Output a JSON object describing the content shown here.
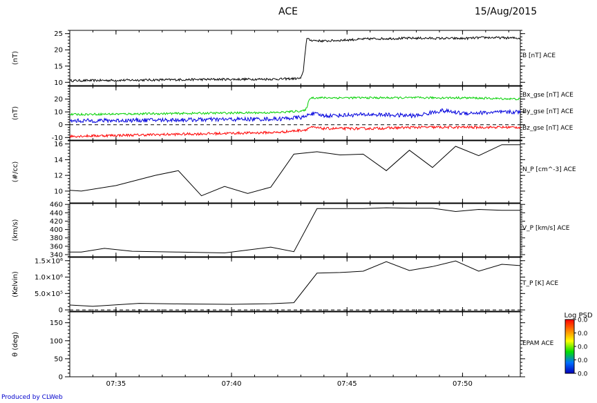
{
  "header": {
    "title": "ACE",
    "date": "15/Aug/2015"
  },
  "footer": {
    "credit": "Produced by CLWeb"
  },
  "colorbar": {
    "title": "Log PSD",
    "ticks": [
      "0.0",
      "0.0",
      "0.0",
      "0.0",
      "0.0"
    ]
  },
  "chart_data": [
    {
      "type": "line",
      "id": "bmag",
      "ylabel": "(nT)",
      "ylim": [
        9,
        26
      ],
      "yticks": [
        10,
        15,
        20,
        25
      ],
      "yticklabels": [
        "10",
        "15",
        "20",
        "25"
      ],
      "series": [
        {
          "name": "B [nT] ACE",
          "color": "#000000",
          "noise": 0.35,
          "x": [
            0,
            3,
            6,
            9,
            10.0,
            10.1,
            10.25,
            10.4,
            11,
            13,
            15,
            17,
            18,
            19.5
          ],
          "y": [
            10.5,
            10.7,
            10.9,
            11.0,
            11.2,
            13.0,
            23.5,
            23.0,
            22.7,
            23.4,
            23.6,
            23.5,
            23.8,
            23.6
          ]
        }
      ]
    },
    {
      "type": "line",
      "id": "bgse",
      "ylabel": "(nT)",
      "ylim": [
        -12,
        30
      ],
      "yticks": [
        -10,
        0,
        10,
        20
      ],
      "yticklabels": [
        "-10",
        "0",
        "10",
        "20"
      ],
      "zero_line": true,
      "series": [
        {
          "name": "Bx_gse [nT] ACE",
          "color": "#ff0000",
          "noise": 1.0,
          "x": [
            0,
            3,
            6,
            9,
            10.2,
            10.4,
            11,
            13,
            15,
            17,
            19.5
          ],
          "y": [
            -9,
            -8,
            -7,
            -6,
            -4,
            -2,
            -3,
            -3,
            -2,
            -2,
            -2
          ]
        },
        {
          "name": "By_gse [nT] ACE",
          "color": "#00d000",
          "noise": 0.8,
          "x": [
            0,
            3,
            6,
            9,
            10.2,
            10.4,
            11,
            13,
            15,
            17,
            19.5
          ],
          "y": [
            8,
            8.5,
            9,
            9.5,
            11,
            21,
            21,
            21,
            21,
            21,
            20
          ]
        },
        {
          "name": "Bz_gse [nT] ACE",
          "color": "#0000dd",
          "noise": 1.6,
          "x": [
            0,
            3,
            6,
            9,
            10.2,
            10.4,
            11,
            13,
            15,
            16.1,
            17,
            19.5
          ],
          "y": [
            3,
            3.5,
            4,
            4.5,
            6,
            9,
            7,
            8,
            7,
            11,
            9,
            10
          ]
        }
      ]
    },
    {
      "type": "line",
      "id": "np",
      "ylabel": "(#/cc)",
      "ylim": [
        8.5,
        16.4
      ],
      "yticks": [
        10,
        12,
        14,
        16
      ],
      "yticklabels": [
        "10",
        "12",
        "14",
        "16"
      ],
      "series": [
        {
          "name": "N_P [cm^-3] ACE",
          "color": "#000000",
          "x": [
            0,
            0.5,
            2,
            3.7,
            4.7,
            5.7,
            6.7,
            7.7,
            8.7,
            9.7,
            10.7,
            11.7,
            12.7,
            13.7,
            14.7,
            15.7,
            16.7,
            17.7,
            18.7,
            19.5
          ],
          "y": [
            10.1,
            10.0,
            10.7,
            12.0,
            12.6,
            9.4,
            10.6,
            9.7,
            10.5,
            14.7,
            15.0,
            14.6,
            14.7,
            12.6,
            15.2,
            13.0,
            15.7,
            14.5,
            15.9,
            15.9
          ]
        }
      ]
    },
    {
      "type": "line",
      "id": "vp",
      "ylabel": "(km/s)",
      "ylim": [
        335,
        462
      ],
      "yticks": [
        340,
        360,
        380,
        400,
        420,
        440,
        460
      ],
      "yticklabels": [
        "340",
        "360",
        "380",
        "400",
        "420",
        "440",
        "460"
      ],
      "series": [
        {
          "name": "V_P [km/s] ACE",
          "color": "#000000",
          "x": [
            0,
            0.5,
            1.5,
            2.7,
            4.7,
            6.7,
            8.7,
            9.7,
            10.7,
            11.7,
            12.7,
            13.7,
            14.7,
            15.7,
            16.7,
            17.7,
            18.7,
            19.5
          ],
          "y": [
            346,
            346,
            355,
            348,
            346,
            344,
            358,
            347,
            450,
            450,
            450,
            452,
            451,
            451,
            443,
            448,
            446,
            446
          ]
        }
      ]
    },
    {
      "type": "line",
      "id": "tp",
      "ylabel": "(Kelvin)",
      "ylim": [
        -40000,
        1600000
      ],
      "yticks": [
        0,
        500000,
        1000000,
        1500000
      ],
      "yticklabels": [
        "0",
        "5.0×10⁵",
        "1.0×10⁶",
        "1.5×10⁶"
      ],
      "zero_line": true,
      "series": [
        {
          "name": "T_P [K] ACE",
          "color": "#000000",
          "x": [
            0,
            1,
            3,
            5,
            7,
            8.7,
            9.7,
            10.7,
            11.7,
            12.7,
            13.7,
            14.7,
            15.7,
            16.7,
            17.7,
            18.7,
            19.5
          ],
          "y": [
            150000,
            110000,
            200000,
            180000,
            170000,
            190000,
            220000,
            1120000,
            1140000,
            1180000,
            1470000,
            1200000,
            1320000,
            1490000,
            1180000,
            1390000,
            1350000
          ]
        }
      ]
    },
    {
      "type": "heatmap",
      "id": "theta",
      "ylabel": "θ (deg)",
      "ylim": [
        0,
        180
      ],
      "yticks": [
        0,
        50,
        100,
        150
      ],
      "yticklabels": [
        "0",
        "50",
        "100",
        "150"
      ],
      "series": [
        {
          "name": "EPAM ACE"
        }
      ]
    }
  ],
  "xaxis": {
    "xlim": [
      0,
      19.5
    ],
    "ticks": [
      2,
      7,
      12,
      17
    ],
    "ticklabels": [
      "07:35",
      "07:40",
      "07:45",
      "07:50"
    ]
  }
}
